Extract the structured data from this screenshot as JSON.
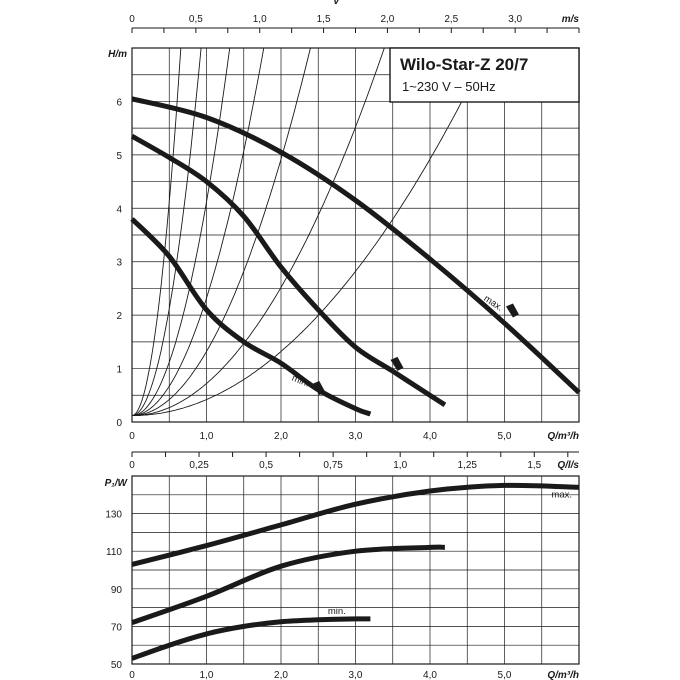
{
  "chart_data": [
    {
      "type": "line",
      "title": "Wilo-Star-Z 20/7",
      "subtitle": "1~230 V – 50Hz",
      "xlabel": "Q/m³/h",
      "ylabel": "H/m",
      "top_axis_label": "m/s",
      "top_axis_symbol": "v",
      "xlim": [
        0,
        6
      ],
      "ylim": [
        0,
        7
      ],
      "top_axis_range": [
        0,
        3.5
      ],
      "grid": true,
      "x_ticks": [
        {
          "v": 0,
          "label": "0"
        },
        {
          "v": 1,
          "label": "1,0"
        },
        {
          "v": 2,
          "label": "2,0"
        },
        {
          "v": 3,
          "label": "3,0"
        },
        {
          "v": 4,
          "label": "4,0"
        },
        {
          "v": 5,
          "label": "5,0"
        }
      ],
      "y_ticks": [
        {
          "v": 0,
          "label": "0"
        },
        {
          "v": 1,
          "label": "1"
        },
        {
          "v": 2,
          "label": "2"
        },
        {
          "v": 3,
          "label": "3"
        },
        {
          "v": 4,
          "label": "4"
        },
        {
          "v": 5,
          "label": "5"
        },
        {
          "v": 6,
          "label": "6"
        }
      ],
      "top_ticks": [
        {
          "v": 0,
          "label": "0"
        },
        {
          "v": 0.5,
          "label": "0,5"
        },
        {
          "v": 1.0,
          "label": "1,0"
        },
        {
          "v": 1.5,
          "label": "1,5"
        },
        {
          "v": 2.0,
          "label": "2,0"
        },
        {
          "v": 2.5,
          "label": "2,5"
        },
        {
          "v": 3.0,
          "label": "3,0"
        }
      ],
      "series": [
        {
          "name": "max.",
          "points": [
            [
              0,
              6.05
            ],
            [
              1,
              5.7
            ],
            [
              2,
              5.05
            ],
            [
              3,
              4.15
            ],
            [
              4,
              3.05
            ],
            [
              5,
              1.85
            ],
            [
              6,
              0.55
            ]
          ]
        },
        {
          "points": [
            [
              0,
              5.35
            ],
            [
              0.5,
              4.95
            ],
            [
              1,
              4.5
            ],
            [
              1.5,
              3.85
            ],
            [
              2,
              2.9
            ],
            [
              2.5,
              2.1
            ],
            [
              3,
              1.4
            ],
            [
              3.5,
              0.95
            ],
            [
              4,
              0.5
            ],
            [
              4.2,
              0.32
            ]
          ]
        },
        {
          "name": "min.",
          "points": [
            [
              0,
              3.8
            ],
            [
              0.5,
              3.1
            ],
            [
              1,
              2.1
            ],
            [
              1.5,
              1.5
            ],
            [
              2,
              1.1
            ],
            [
              2.5,
              0.6
            ],
            [
              3,
              0.25
            ],
            [
              3.2,
              0.15
            ]
          ]
        }
      ],
      "system_curves": [
        0.3,
        0.6,
        1.2,
        2.2,
        4,
        8,
        16
      ],
      "curve_labels": [
        "max.",
        "min."
      ]
    },
    {
      "type": "line",
      "xlabel": "Q/m³/h",
      "ylabel": "P₁/W",
      "top_axis_label": "Q/l/s",
      "xlim": [
        0,
        6
      ],
      "ylim": [
        50,
        150
      ],
      "top_axis_range": [
        0,
        1.6667
      ],
      "grid": true,
      "x_ticks": [
        {
          "v": 0,
          "label": "0"
        },
        {
          "v": 1,
          "label": "1,0"
        },
        {
          "v": 2,
          "label": "2,0"
        },
        {
          "v": 3,
          "label": "3,0"
        },
        {
          "v": 4,
          "label": "4,0"
        },
        {
          "v": 5,
          "label": "5,0"
        }
      ],
      "y_ticks": [
        {
          "v": 50,
          "label": "50"
        },
        {
          "v": 70,
          "label": "70"
        },
        {
          "v": 90,
          "label": "90"
        },
        {
          "v": 110,
          "label": "110"
        },
        {
          "v": 130,
          "label": "130"
        }
      ],
      "top_ticks": [
        {
          "v": 0,
          "label": "0"
        },
        {
          "v": 0.25,
          "label": "0,25"
        },
        {
          "v": 0.5,
          "label": "0,5"
        },
        {
          "v": 0.75,
          "label": "0,75"
        },
        {
          "v": 1.0,
          "label": "1,0"
        },
        {
          "v": 1.25,
          "label": "1,25"
        },
        {
          "v": 1.5,
          "label": "1,5"
        }
      ],
      "series": [
        {
          "name": "max.",
          "points": [
            [
              0,
              103
            ],
            [
              1,
              113
            ],
            [
              2,
              124
            ],
            [
              3,
              135
            ],
            [
              4,
              142
            ],
            [
              5,
              145
            ],
            [
              6,
              144
            ]
          ]
        },
        {
          "points": [
            [
              0,
              72
            ],
            [
              1,
              86
            ],
            [
              2,
              102
            ],
            [
              3,
              110
            ],
            [
              4,
              112
            ],
            [
              4.2,
              112
            ]
          ]
        },
        {
          "name": "min.",
          "points": [
            [
              0,
              53
            ],
            [
              0.5,
              60
            ],
            [
              1,
              66
            ],
            [
              1.5,
              70
            ],
            [
              2,
              72.5
            ],
            [
              2.5,
              73.5
            ],
            [
              3,
              74
            ],
            [
              3.2,
              74
            ]
          ]
        }
      ],
      "curve_labels": [
        "max.",
        "min."
      ]
    }
  ]
}
